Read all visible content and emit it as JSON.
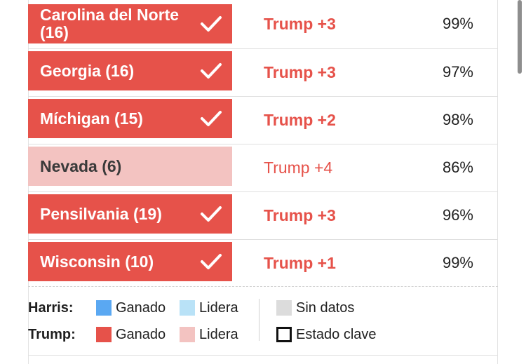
{
  "rows": [
    {
      "state": "Carolina del Norte (16)",
      "margin": "Trump +3",
      "pct": "99%",
      "status": "won"
    },
    {
      "state": "Georgia (16)",
      "margin": "Trump +3",
      "pct": "97%",
      "status": "won"
    },
    {
      "state": "Míchigan (15)",
      "margin": "Trump +2",
      "pct": "98%",
      "status": "won"
    },
    {
      "state": "Nevada (6)",
      "margin": "Trump +4",
      "pct": "86%",
      "status": "lead"
    },
    {
      "state": "Pensilvania (19)",
      "margin": "Trump +3",
      "pct": "96%",
      "status": "won"
    },
    {
      "state": "Wisconsin (10)",
      "margin": "Trump +1",
      "pct": "99%",
      "status": "won"
    }
  ],
  "legend": {
    "harris_label": "Harris:",
    "trump_label": "Trump:",
    "ganado": "Ganado",
    "lidera": "Lidera",
    "sin_datos": "Sin datos",
    "estado_clave": "Estado clave"
  },
  "colors": {
    "trump_won": "#e6524a",
    "trump_lead": "#f3c3c1",
    "harris_won": "#5aa8f2",
    "harris_lead": "#b9e2f7",
    "no_data": "#dcdcdc"
  },
  "icons": {
    "won_check": "check-icon"
  }
}
